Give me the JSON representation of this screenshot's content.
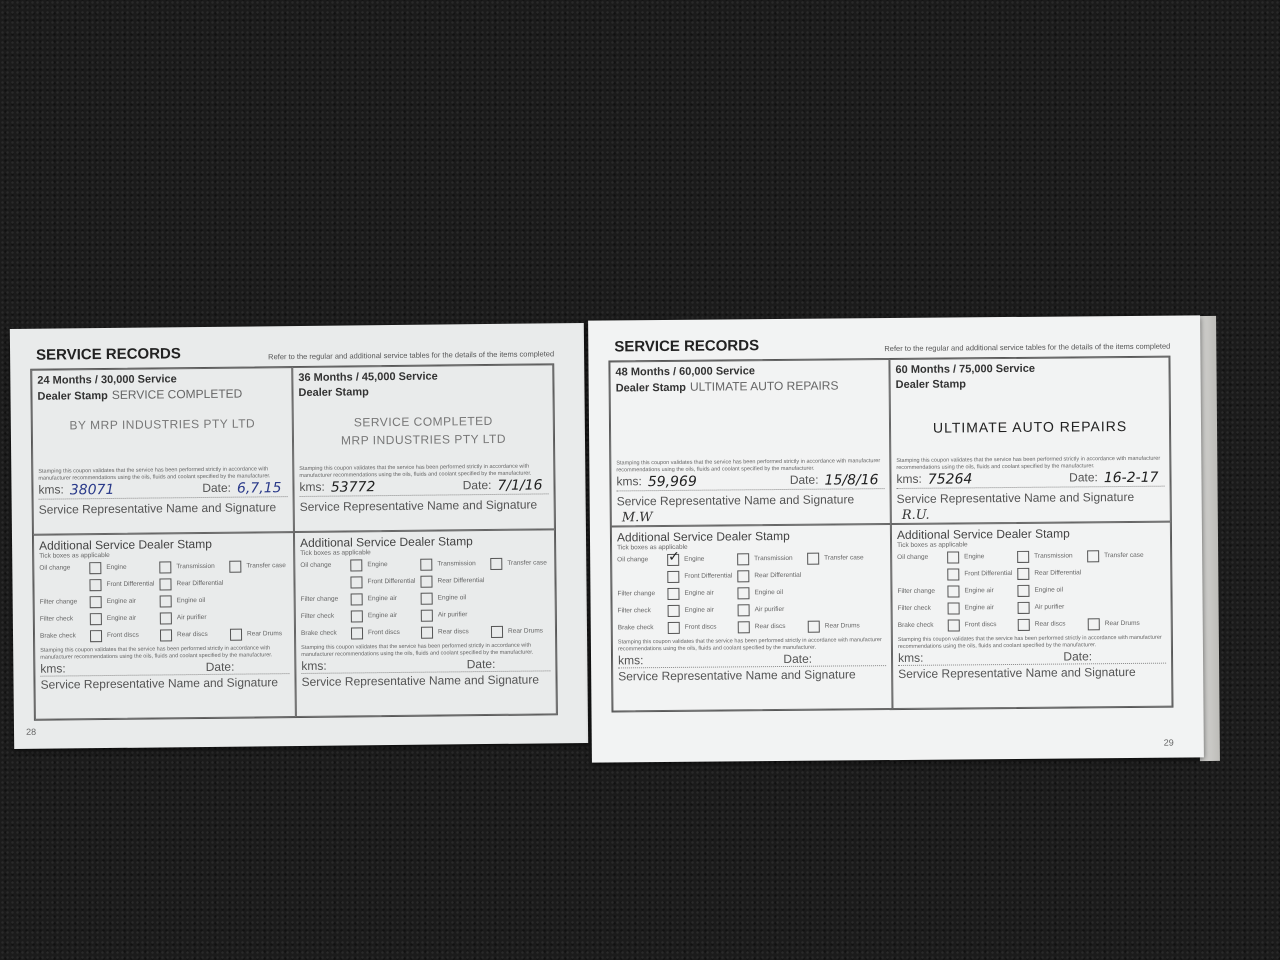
{
  "pages": [
    {
      "title": "SERVICE RECORDS",
      "note": "Refer to the regular and additional service tables for the details of the items completed",
      "page_number": "28",
      "services": [
        {
          "heading": "24 Months / 30,000 Service",
          "stamp_label": "Dealer Stamp",
          "stamp_inline": "SERVICE COMPLETED",
          "stamp_lines": [
            "BY MRP INDUSTRIES PTY LTD"
          ],
          "validation": "Stamping this coupon validates that the service has been performed strictly in accordance with manufacturer recommendations using the oils, fluids and coolant specified by the manufacturer.",
          "kms_label": "kms:",
          "kms_value": "38071",
          "date_label": "Date:",
          "date_value": "6,7,15",
          "sig_label": "Service Representative Name and Signature",
          "signature": ""
        },
        {
          "heading": "36 Months / 45,000 Service",
          "stamp_label": "Dealer Stamp",
          "stamp_inline": "",
          "stamp_lines": [
            "SERVICE COMPLETED",
            "MRP INDUSTRIES PTY LTD"
          ],
          "validation": "Stamping this coupon validates that the service has been performed strictly in accordance with manufacturer recommendations using the oils, fluids and coolant specified by the manufacturer.",
          "kms_label": "kms:",
          "kms_value": "53772",
          "date_label": "Date:",
          "date_value": "7/1/16",
          "sig_label": "Service Representative Name and Signature",
          "signature": ""
        }
      ]
    },
    {
      "title": "SERVICE RECORDS",
      "note": "Refer to the regular and additional service tables for the details of the items completed",
      "page_number": "29",
      "services": [
        {
          "heading": "48 Months / 60,000 Service",
          "stamp_label": "Dealer Stamp",
          "stamp_inline": "ULTIMATE AUTO REPAIRS",
          "stamp_lines": [],
          "validation": "Stamping this coupon validates that the service has been performed strictly in accordance with manufacturer recommendations using the oils, fluids and coolant specified by the manufacturer.",
          "kms_label": "kms:",
          "kms_value": "59,969",
          "date_label": "Date:",
          "date_value": "15/8/16",
          "sig_label": "Service Representative Name and Signature",
          "signature": "M.W"
        },
        {
          "heading": "60 Months / 75,000 Service",
          "stamp_label": "Dealer Stamp",
          "stamp_inline": "",
          "stamp_lines": [
            "ULTIMATE AUTO REPAIRS"
          ],
          "validation": "Stamping this coupon validates that the service has been performed strictly in accordance with manufacturer recommendations using the oils, fluids and coolant specified by the manufacturer.",
          "kms_label": "kms:",
          "kms_value": "75264",
          "date_label": "Date:",
          "date_value": "16-2-17",
          "sig_label": "Service Representative Name and Signature",
          "signature": "R.U."
        }
      ]
    }
  ],
  "additional": {
    "title": "Additional Service Dealer Stamp",
    "tick_label": "Tick boxes as applicable",
    "rows": [
      {
        "label": "Oil change",
        "options": [
          "Engine",
          "Transmission",
          "Transfer case"
        ]
      },
      {
        "label": "",
        "options": [
          "Front Differential",
          "Rear Differential"
        ]
      },
      {
        "label": "Filter change",
        "options": [
          "Engine air",
          "Engine oil"
        ]
      },
      {
        "label": "Filter check",
        "options": [
          "Engine air",
          "Air purifier"
        ]
      },
      {
        "label": "Brake check",
        "options": [
          "Front discs",
          "Rear discs",
          "Rear Drums"
        ]
      }
    ],
    "validation": "Stamping this coupon validates that the service has been performed strictly in accordance with manufacturer recommendations using the oils, fluids and coolant specified by the manufacturer.",
    "kms_label": "kms:",
    "date_label": "Date:",
    "sig_label": "Service Representative Name and Signature",
    "checked": {
      "p1c0": [
        "0.0"
      ]
    }
  },
  "colors": {
    "ink_blue": "#2a3a8a",
    "page": "#eceeee",
    "background": "#1b1b1b"
  }
}
